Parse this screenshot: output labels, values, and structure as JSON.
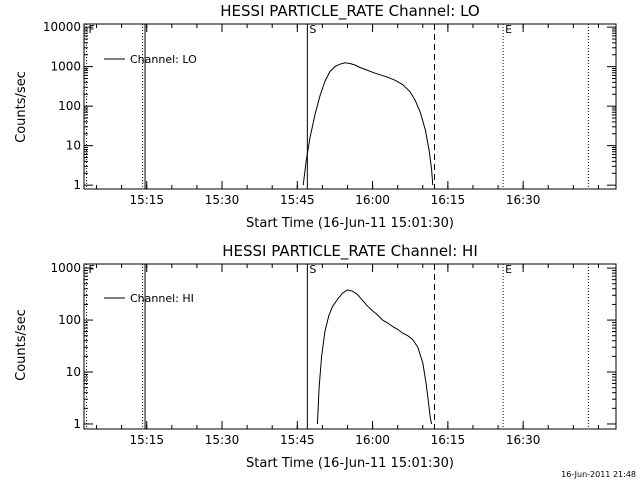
{
  "footer": "16-Jun-2011 21:48",
  "chart_data": [
    {
      "type": "line",
      "title": "HESSI PARTICLE_RATE Channel: LO",
      "xlabel": "Start Time (16-Jun-11 15:01:30)",
      "ylabel": "Counts/sec",
      "y_scale": "log",
      "xlim": [
        "15:02:30",
        "16:48:30"
      ],
      "ylim": [
        0.8,
        12000
      ],
      "x_ticks": [
        "15:15",
        "15:30",
        "15:45",
        "16:00",
        "16:15",
        "16:30"
      ],
      "y_ticks": [
        "1",
        "10",
        "100",
        "1000",
        "10000"
      ],
      "legend": {
        "placement": "top-left"
      },
      "markers": [
        {
          "label": "F",
          "time": "15:03:00",
          "style": "dotted"
        },
        {
          "label": "",
          "time": "15:14:10",
          "style": "dotted"
        },
        {
          "label": "",
          "time": "15:14:40",
          "style": "solid"
        },
        {
          "label": "S",
          "time": "15:47:00",
          "style": "solid"
        },
        {
          "label": "",
          "time": "16:12:20",
          "style": "dashed"
        },
        {
          "label": "E",
          "time": "16:26:00",
          "style": "dotted"
        },
        {
          "label": "",
          "time": "16:43:00",
          "style": "dotted"
        }
      ],
      "series": [
        {
          "name": "Channel: LO",
          "x": [
            "15:46:10",
            "15:46:45",
            "15:47:30",
            "15:48:30",
            "15:49:30",
            "15:50:30",
            "15:51:30",
            "15:52:30",
            "15:53:30",
            "15:54:30",
            "15:55:30",
            "15:56:30",
            "15:57:30",
            "15:58:30",
            "16:00:00",
            "16:01:30",
            "16:03:00",
            "16:04:30",
            "16:06:00",
            "16:07:30",
            "16:08:30",
            "16:09:30",
            "16:10:30",
            "16:11:15",
            "16:11:45",
            "16:12:00"
          ],
          "values": [
            1,
            4,
            15,
            60,
            180,
            420,
            750,
            1000,
            1150,
            1250,
            1200,
            1100,
            950,
            850,
            720,
            620,
            540,
            450,
            350,
            230,
            140,
            70,
            25,
            8,
            2.5,
            1
          ]
        }
      ]
    },
    {
      "type": "line",
      "title": "HESSI PARTICLE_RATE Channel: HI",
      "xlabel": "Start Time (16-Jun-11 15:01:30)",
      "ylabel": "Counts/sec",
      "y_scale": "log",
      "xlim": [
        "15:02:30",
        "16:48:30"
      ],
      "ylim": [
        0.8,
        1200
      ],
      "x_ticks": [
        "15:15",
        "15:30",
        "15:45",
        "16:00",
        "16:15",
        "16:30"
      ],
      "y_ticks": [
        "1",
        "10",
        "100",
        "1000"
      ],
      "legend": {
        "placement": "top-left"
      },
      "markers": [
        {
          "label": "F",
          "time": "15:03:00",
          "style": "dotted"
        },
        {
          "label": "",
          "time": "15:14:10",
          "style": "dotted"
        },
        {
          "label": "",
          "time": "15:14:40",
          "style": "solid"
        },
        {
          "label": "S",
          "time": "15:47:00",
          "style": "solid"
        },
        {
          "label": "",
          "time": "16:12:20",
          "style": "dashed"
        },
        {
          "label": "E",
          "time": "16:26:00",
          "style": "dotted"
        },
        {
          "label": "",
          "time": "16:43:00",
          "style": "dotted"
        }
      ],
      "series": [
        {
          "name": "Channel: HI",
          "x": [
            "15:49:00",
            "15:49:20",
            "15:49:50",
            "15:50:30",
            "15:51:15",
            "15:52:00",
            "15:53:00",
            "15:54:00",
            "15:55:00",
            "15:56:00",
            "15:57:00",
            "15:58:00",
            "15:59:00",
            "16:00:00",
            "16:01:00",
            "16:02:00",
            "16:03:00",
            "16:04:00",
            "16:05:00",
            "16:06:00",
            "16:07:00",
            "16:08:00",
            "16:09:00",
            "16:10:00",
            "16:10:40",
            "16:11:10",
            "16:11:30",
            "16:11:45"
          ],
          "values": [
            1,
            5,
            20,
            60,
            120,
            180,
            250,
            330,
            380,
            360,
            310,
            240,
            185,
            150,
            125,
            100,
            88,
            75,
            66,
            56,
            50,
            42,
            30,
            15,
            6,
            2.5,
            1.3,
            1
          ]
        }
      ]
    }
  ]
}
